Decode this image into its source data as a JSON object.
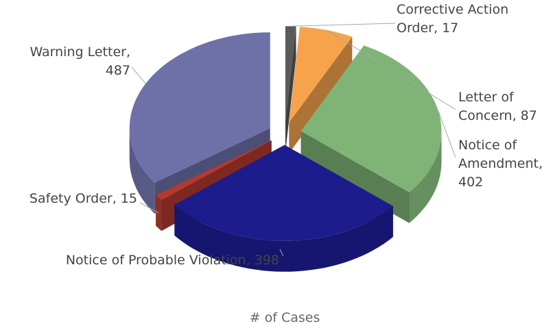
{
  "chart_data": {
    "type": "pie",
    "labels": [
      "Corrective Action Order, 17",
      "Letter of Concern, 87",
      "Notice of Amendment, 402",
      "Notice of Probable Violation, 398",
      "Safety Order, 15",
      "Warning Letter, 487"
    ],
    "values": [
      17,
      87,
      402,
      398,
      15,
      487
    ],
    "colors": [
      "#5a5a5a",
      "#f7a34c",
      "#80b477",
      "#1c1c8c",
      "#b23a2f",
      "#6e70a8"
    ],
    "xlabel": "# of Cases"
  }
}
